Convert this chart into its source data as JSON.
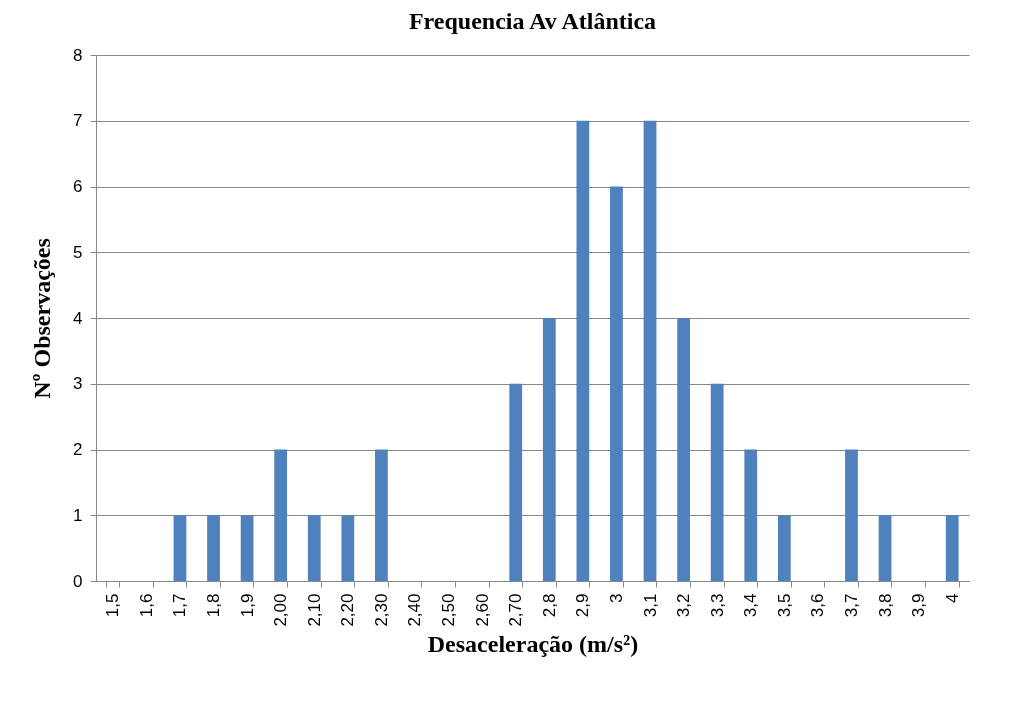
{
  "chart_data": {
    "type": "bar",
    "title": "Frequencia Av Atlântica",
    "xlabel": "Desaceleração (m/s²)",
    "ylabel": "Nº Observações",
    "categories": [
      "1,5",
      "1,6",
      "1,7",
      "1,8",
      "1,9",
      "2,00",
      "2,10",
      "2,20",
      "2,30",
      "2,40",
      "2,50",
      "2,60",
      "2,70",
      "2,8",
      "2,9",
      "3",
      "3,1",
      "3,2",
      "3,3",
      "3,4",
      "3,5",
      "3,6",
      "3,7",
      "3,8",
      "3,9",
      "4"
    ],
    "values": [
      0,
      0,
      1,
      1,
      1,
      2,
      1,
      1,
      2,
      0,
      0,
      0,
      3,
      4,
      7,
      6,
      7,
      4,
      3,
      2,
      1,
      0,
      2,
      1,
      0,
      1
    ],
    "color": "#4f81bd",
    "ylim": [
      0,
      8
    ],
    "yticks": [
      0,
      1,
      2,
      3,
      4,
      5,
      6,
      7,
      8
    ],
    "grid": "y"
  }
}
